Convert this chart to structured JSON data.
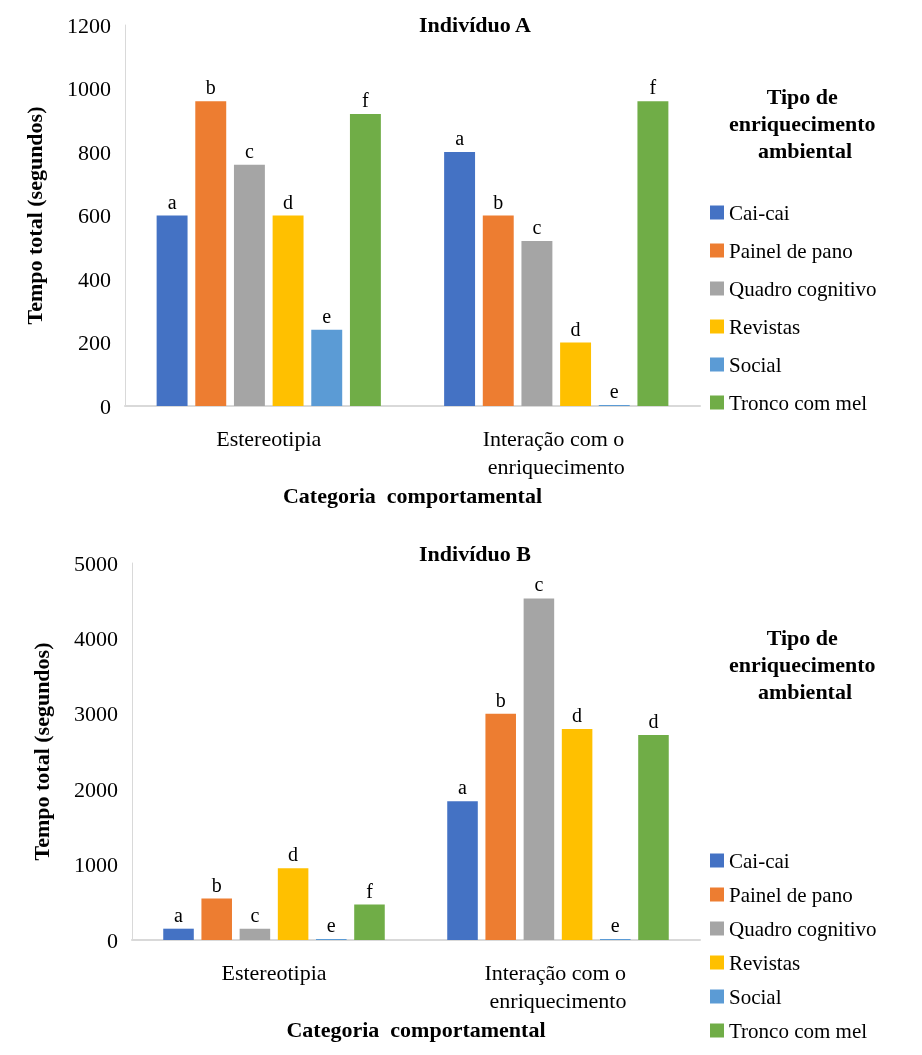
{
  "chart_data": [
    {
      "type": "bar",
      "title": "Indivíduo A",
      "xlabel": "Categoria  comportamental",
      "ylabel": "Tempo total (segundos)",
      "legend_title": "Tipo de enriquecimento ambiental",
      "legend": "right",
      "categories": [
        "Estereotipia",
        "Interação com o enriquecimento"
      ],
      "ylim": [
        0,
        1200
      ],
      "yticks": [
        0,
        200,
        400,
        600,
        800,
        1000,
        1200
      ],
      "series": [
        {
          "name": "Cai-cai",
          "color": "#4472c4",
          "values": [
            600,
            800
          ],
          "value_labels": [
            "a",
            "a"
          ]
        },
        {
          "name": "Painel de pano",
          "color": "#ed7d31",
          "values": [
            960,
            600
          ],
          "value_labels": [
            "b",
            "b"
          ]
        },
        {
          "name": "Quadro cognitivo",
          "color": "#a5a5a5",
          "values": [
            760,
            520
          ],
          "value_labels": [
            "c",
            "c"
          ]
        },
        {
          "name": "Revistas",
          "color": "#ffc000",
          "values": [
            600,
            200
          ],
          "value_labels": [
            "d",
            "d"
          ]
        },
        {
          "name": "Social",
          "color": "#5b9bd5",
          "values": [
            240,
            0
          ],
          "value_labels": [
            "e",
            "e"
          ]
        },
        {
          "name": "Tronco com mel",
          "color": "#70ad47",
          "values": [
            920,
            960
          ],
          "value_labels": [
            "f",
            "f"
          ]
        }
      ]
    },
    {
      "type": "bar",
      "title": "Indivíduo B",
      "xlabel": "Categoria  comportamental",
      "ylabel": "Tempo total (segundos)",
      "legend_title": "Tipo de enriquecimento ambiental",
      "legend": "right",
      "categories": [
        "Estereotipia",
        "Interação com o enriquecimento"
      ],
      "ylim": [
        0,
        5000
      ],
      "yticks": [
        0,
        1000,
        2000,
        3000,
        4000,
        5000
      ],
      "series": [
        {
          "name": "Cai-cai",
          "color": "#4472c4",
          "values": [
            150,
            1840
          ],
          "value_labels": [
            "a",
            "a"
          ]
        },
        {
          "name": "Painel de pano",
          "color": "#ed7d31",
          "values": [
            550,
            3000
          ],
          "value_labels": [
            "b",
            "b"
          ]
        },
        {
          "name": "Quadro cognitivo",
          "color": "#a5a5a5",
          "values": [
            150,
            4530
          ],
          "value_labels": [
            "c",
            "c"
          ]
        },
        {
          "name": "Revistas",
          "color": "#ffc000",
          "values": [
            950,
            2800
          ],
          "value_labels": [
            "d",
            "d"
          ]
        },
        {
          "name": "Social",
          "color": "#5b9bd5",
          "values": [
            0,
            0
          ],
          "value_labels": [
            "e",
            "e"
          ]
        },
        {
          "name": "Tronco com mel",
          "color": "#70ad47",
          "values": [
            470,
            2720
          ],
          "value_labels": [
            "f",
            "d"
          ]
        }
      ]
    }
  ]
}
